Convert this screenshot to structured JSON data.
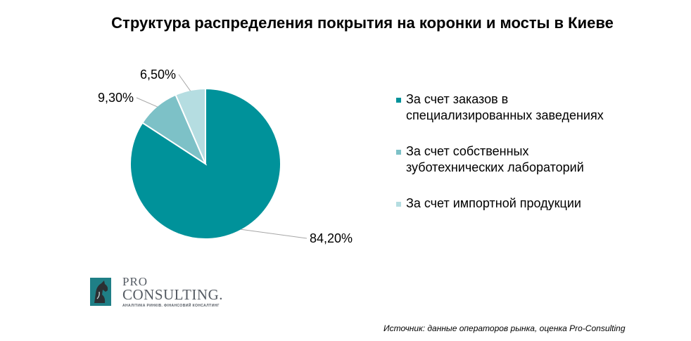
{
  "chart_data": {
    "type": "pie",
    "title": "Структура распределения покрытия на коронки и мосты в Киеве",
    "slices": [
      {
        "label": "За счет заказов в специализированных  заведениях",
        "value": 84.2,
        "display": "84,20%",
        "color": "#00929a"
      },
      {
        "label": "За счет собственных зуботехнических  лабораторий",
        "value": 9.3,
        "display": "9,30%",
        "color": "#7dc1c7"
      },
      {
        "label": "За счет импортной  продукции",
        "value": 6.5,
        "display": "6,50%",
        "color": "#b5dde1"
      }
    ],
    "legend_position": "right",
    "legend_lines": [
      [
        "За счет заказов в",
        "специализированных  заведениях"
      ],
      [
        "За счет собственных",
        "зуботехнических  лабораторий"
      ],
      [
        "За счет импортной  продукции"
      ]
    ]
  },
  "logo": {
    "pro": "PRO",
    "consulting": "CONSULTING.",
    "tagline": "АНАЛІТИКА РИНКІВ. ФІНАНСОВИЙ КОНСАЛТИНГ"
  },
  "source": "Источник: данные операторов рынка, оценка Pro-Consulting"
}
